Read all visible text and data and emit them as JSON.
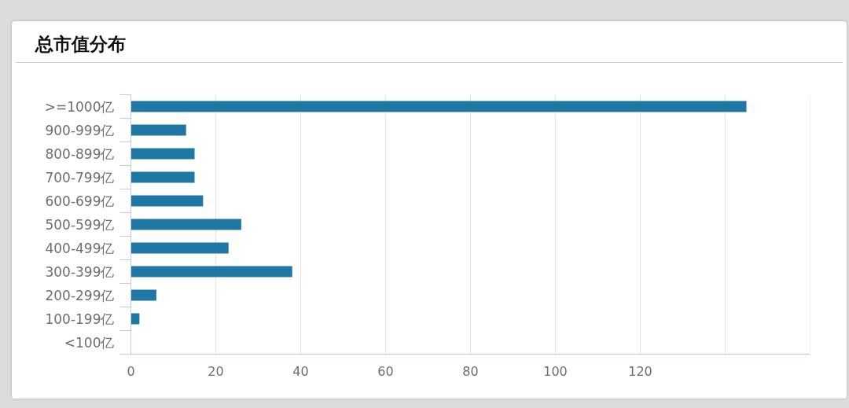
{
  "chart_data": {
    "type": "bar",
    "orientation": "horizontal",
    "title": "总市值分布",
    "categories": [
      ">=1000亿",
      "900-999亿",
      "800-899亿",
      "700-799亿",
      "600-699亿",
      "500-599亿",
      "400-499亿",
      "300-399亿",
      "200-299亿",
      "100-199亿",
      "<100亿"
    ],
    "values": [
      145,
      13,
      15,
      15,
      17,
      26,
      23,
      38,
      6,
      2,
      0
    ],
    "color": "#1f77a4",
    "xlim": [
      0,
      160
    ],
    "xticks": [
      0,
      20,
      40,
      60,
      80,
      100,
      120,
      {
        "value": 140,
        "label": null
      },
      {
        "value": 160,
        "label": null
      }
    ],
    "grid": "x"
  }
}
